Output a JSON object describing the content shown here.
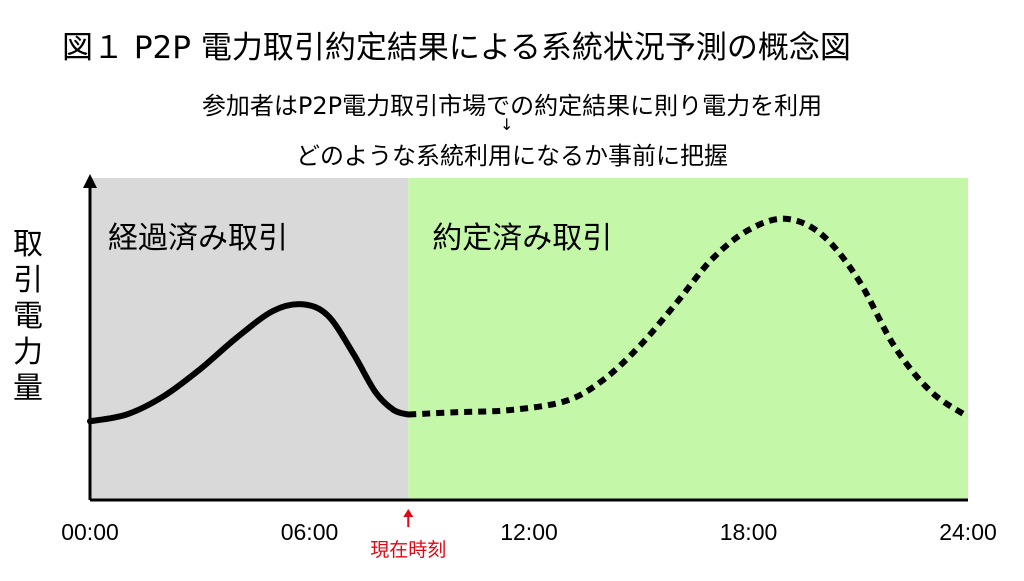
{
  "title": "図１ P2P 電力取引約定結果による系統状況予測の概念図",
  "subtitle_line1": "参加者はP2P電力取引市場での約定結果に則り電力を利用",
  "arrow_glyph": "↓",
  "subtitle_line2": "どのような系統利用になるか事前に把握",
  "y_axis_label": [
    "取",
    "引",
    "電",
    "力",
    "量"
  ],
  "regions": {
    "past": {
      "label": "経過済み取引",
      "color": "#d9d9d9"
    },
    "future": {
      "label": "約定済み取引",
      "color": "#c5f7a9"
    }
  },
  "current_time_label": "現在時刻",
  "current_time_color": "#e30613",
  "x_ticks": [
    "00:00",
    "06:00",
    "12:00",
    "18:00",
    "24:00"
  ],
  "chart_data": {
    "type": "line",
    "x_unit": "hour",
    "xlim": [
      0,
      24
    ],
    "current_time": 8.7,
    "series": [
      {
        "name": "経過済み取引",
        "style": "solid",
        "x": [
          0,
          1,
          2,
          3,
          4,
          5,
          5.8,
          6.5,
          7.2,
          7.8,
          8.3,
          8.7
        ],
        "y": [
          0.15,
          0.18,
          0.26,
          0.38,
          0.52,
          0.64,
          0.67,
          0.62,
          0.45,
          0.28,
          0.2,
          0.18
        ]
      },
      {
        "name": "約定済み取引",
        "style": "dashed",
        "x": [
          8.7,
          10,
          11.5,
          13,
          14,
          15,
          16,
          17,
          18,
          19,
          20,
          21,
          22,
          23,
          24
        ],
        "y": [
          0.18,
          0.19,
          0.2,
          0.24,
          0.33,
          0.48,
          0.67,
          0.87,
          1.0,
          1.05,
          0.98,
          0.78,
          0.48,
          0.28,
          0.17
        ]
      }
    ]
  }
}
